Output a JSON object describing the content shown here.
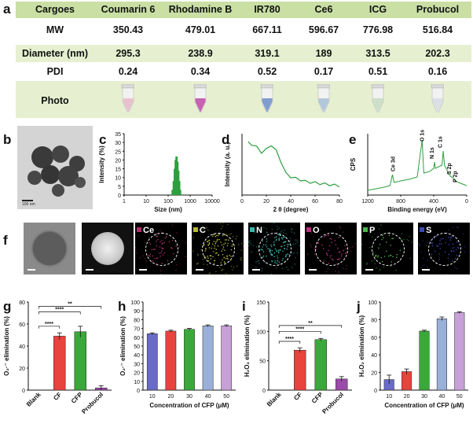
{
  "panels": {
    "a": "a",
    "b": "b",
    "c": "c",
    "d": "d",
    "e": "e",
    "f": "f",
    "g": "g",
    "h": "h",
    "i": "i",
    "j": "j"
  },
  "table": {
    "header_label": "Cargoes",
    "cargoes": [
      "Coumarin 6",
      "Rhodamine B",
      "IR780",
      "Ce6",
      "ICG",
      "Probucol"
    ],
    "rows": [
      {
        "label": "MW",
        "values": [
          "350.43",
          "479.01",
          "667.11",
          "596.67",
          "776.98",
          "516.84"
        ]
      },
      {
        "label": "Diameter (nm)",
        "values": [
          "295.3",
          "238.9",
          "319.1",
          "189",
          "313.5",
          "202.3"
        ]
      },
      {
        "label": "PDI",
        "values": [
          "0.24",
          "0.34",
          "0.52",
          "0.17",
          "0.51",
          "0.16"
        ]
      }
    ],
    "photo_label": "Photo",
    "tube_colors": [
      "#e8b8c8",
      "#c04aa8",
      "#6b8ec8",
      "#a8c0d8",
      "#c8dcc0",
      "#d8dce0"
    ],
    "header_bg": "#c9dfa4",
    "row_bg_alt": "#e6f0d0"
  },
  "tem": {
    "scale_text": "100 nm"
  },
  "elements": {
    "tiles": [
      {
        "label": "",
        "color": "#7a7a7a",
        "kind": "sem"
      },
      {
        "label": "",
        "color": "#111",
        "kind": "haadf"
      },
      {
        "label": "Ce",
        "color": "#b0306a",
        "kind": "map"
      },
      {
        "label": "C",
        "color": "#b8b83a",
        "kind": "map"
      },
      {
        "label": "N",
        "color": "#3ab8b0",
        "kind": "map"
      },
      {
        "label": "O",
        "color": "#c03080",
        "kind": "map"
      },
      {
        "label": "P",
        "color": "#4ab84a",
        "kind": "map"
      },
      {
        "label": "S",
        "color": "#3a4ab8",
        "kind": "map"
      }
    ]
  },
  "chart_data": [
    {
      "id": "c",
      "type": "bar",
      "xlabel": "Size (nm)",
      "ylabel": "Intensity (%)",
      "xscale": "log",
      "xlim": [
        1,
        10000
      ],
      "ylim": [
        0,
        35
      ],
      "xticks": [
        "1",
        "10",
        "100",
        "1000",
        "10000"
      ],
      "yticks": [
        "0",
        "5",
        "10",
        "15",
        "20",
        "25",
        "30",
        "35"
      ],
      "x": [
        160,
        180,
        200,
        220,
        240,
        265,
        290,
        320,
        350
      ],
      "values": [
        3,
        8,
        15,
        20,
        22,
        19,
        14,
        8,
        3
      ],
      "color": "#2e9e3e"
    },
    {
      "id": "d",
      "type": "line",
      "xlabel": "2 θ (degree)",
      "ylabel": "Intensity (a. u.)",
      "xlim": [
        0,
        80
      ],
      "xticks": [
        "0",
        "20",
        "40",
        "60",
        "80"
      ],
      "x": [
        5,
        8,
        12,
        16,
        20,
        24,
        28,
        32,
        36,
        40,
        44,
        48,
        52,
        56,
        60,
        64,
        68,
        72,
        76,
        80
      ],
      "y": [
        0.85,
        0.83,
        0.78,
        0.7,
        0.74,
        0.82,
        0.72,
        0.55,
        0.35,
        0.3,
        0.27,
        0.25,
        0.22,
        0.21,
        0.2,
        0.19,
        0.18,
        0.17,
        0.16,
        0.15
      ],
      "color": "#2e9e3e"
    },
    {
      "id": "e",
      "type": "line",
      "xlabel": "Binding energy (eV)",
      "ylabel": "CPS",
      "xlim": [
        1200,
        0
      ],
      "xticks": [
        "1200",
        "800",
        "400",
        "0"
      ],
      "annotations": [
        "Ce 3d",
        "O 1s",
        "N 1s",
        "C 1s",
        "S 2p",
        "P 2p"
      ],
      "color": "#2e9e3e"
    },
    {
      "id": "g",
      "type": "bar",
      "ylabel": "O₂·⁻ elimination (%)",
      "ylim": [
        0,
        80
      ],
      "yticks": [
        "0",
        "20",
        "40",
        "60",
        "80"
      ],
      "categories": [
        "Blank",
        "CF",
        "CFP",
        "Probucol"
      ],
      "values": [
        0,
        49,
        53,
        2
      ],
      "errors": [
        0,
        3,
        5,
        2
      ],
      "colors": [
        "#888888",
        "#e8433c",
        "#3aa83a",
        "#9a4aa8"
      ],
      "significance": [
        "****",
        "****",
        "**"
      ]
    },
    {
      "id": "h",
      "type": "bar",
      "xlabel": "Concentration of CFP (μM)",
      "ylabel": "O₂·⁻ elimination (%)",
      "ylim": [
        0,
        100
      ],
      "yticks": [
        "0",
        "10",
        "20",
        "30",
        "40",
        "50",
        "60",
        "70",
        "80",
        "90",
        "100"
      ],
      "categories": [
        "10",
        "20",
        "30",
        "40",
        "50"
      ],
      "values": [
        64,
        67,
        69,
        73,
        73
      ],
      "errors": [
        1,
        1,
        1,
        1,
        1
      ],
      "colors": [
        "#6a6ac8",
        "#e8433c",
        "#3aa83a",
        "#9ab0d8",
        "#c8a0d8"
      ]
    },
    {
      "id": "i",
      "type": "bar",
      "ylabel": "H₂O₂ elimination (%)",
      "ylim": [
        0,
        150
      ],
      "yticks": [
        "0",
        "50",
        "100",
        "150"
      ],
      "categories": [
        "Blank",
        "CF",
        "CFP",
        "Probucol"
      ],
      "values": [
        0,
        68,
        86,
        19
      ],
      "errors": [
        0,
        4,
        2,
        4
      ],
      "colors": [
        "#888888",
        "#e8433c",
        "#3aa83a",
        "#9a4aa8"
      ],
      "significance": [
        "****",
        "****",
        "**"
      ]
    },
    {
      "id": "j",
      "type": "bar",
      "xlabel": "Concentration of CFP (μM)",
      "ylabel": "H₂O₂ elimination (%)",
      "ylim": [
        0,
        100
      ],
      "yticks": [
        "0",
        "20",
        "40",
        "60",
        "80",
        "100"
      ],
      "categories": [
        "10",
        "20",
        "30",
        "40",
        "50"
      ],
      "values": [
        12,
        21,
        67,
        81,
        88
      ],
      "errors": [
        5,
        3,
        1,
        2,
        1
      ],
      "colors": [
        "#6a6ac8",
        "#e8433c",
        "#3aa83a",
        "#9ab0d8",
        "#c8a0d8"
      ]
    }
  ]
}
